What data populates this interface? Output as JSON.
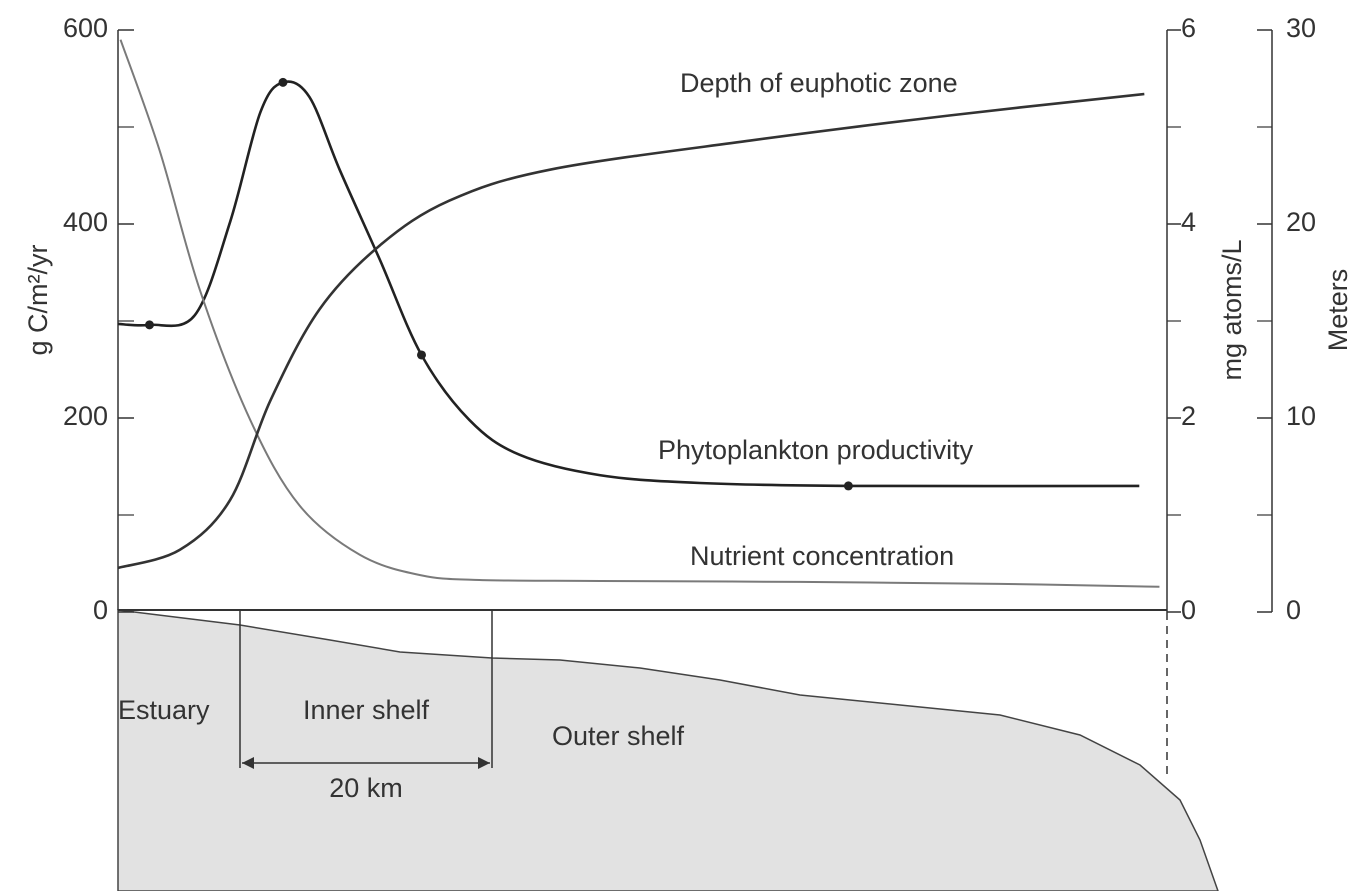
{
  "chart_data": {
    "type": "line",
    "ylabel": "g C/m²/yr",
    "y2label": "mg atoms/L",
    "y3label": "Meters",
    "xlim": [
      0,
      83.3
    ],
    "ylim": [
      0,
      600
    ],
    "yticks": [
      0,
      200,
      400,
      600
    ],
    "yminor": [
      100,
      300,
      500
    ],
    "y2lim": [
      0,
      6
    ],
    "y2ticks": [
      0,
      2,
      4,
      6
    ],
    "y2minor": [
      1,
      3,
      5
    ],
    "y3lim": [
      0,
      30
    ],
    "y3ticks": [
      0,
      10,
      20,
      30
    ],
    "y3minor": [
      5,
      15,
      25
    ],
    "series": [
      {
        "name": "Phytoplankton productivity",
        "color": "#222222",
        "axis": "y",
        "x": [
          0,
          2.5,
          6.1,
          8.9,
          11.3,
          13.1,
          15.2,
          17.6,
          20.8,
          24.1,
          27.9,
          31.9,
          38.3,
          46.2,
          58.0,
          81.1
        ],
        "values": [
          297,
          296,
          306,
          402,
          515,
          546,
          531,
          456,
          363,
          265,
          198,
          162,
          141,
          133,
          130,
          130
        ]
      },
      {
        "name": "Nutrient concentration",
        "color": "#7a7a7a",
        "axis": "y2",
        "x": [
          0.2,
          3.3,
          6.5,
          10.5,
          14.4,
          19.2,
          24.0,
          28.7,
          38.3,
          54.1,
          70.0,
          82.7
        ],
        "values": [
          5.9,
          4.76,
          3.32,
          1.98,
          1.1,
          0.59,
          0.38,
          0.33,
          0.32,
          0.31,
          0.29,
          0.26
        ]
      },
      {
        "name": "Depth of euphotic zone",
        "color": "#333333",
        "axis": "y3",
        "x": [
          0,
          4.9,
          8.9,
          12.1,
          16.0,
          20.8,
          26.3,
          34.3,
          50.2,
          66.1,
          81.5
        ],
        "values": [
          2.27,
          3.2,
          5.77,
          10.9,
          15.6,
          18.9,
          21.2,
          22.8,
          24.3,
          25.6,
          26.7
        ]
      }
    ],
    "zones": [
      "Estuary",
      "Inner shelf",
      "Outer shelf"
    ],
    "scale_label": "20 km"
  }
}
